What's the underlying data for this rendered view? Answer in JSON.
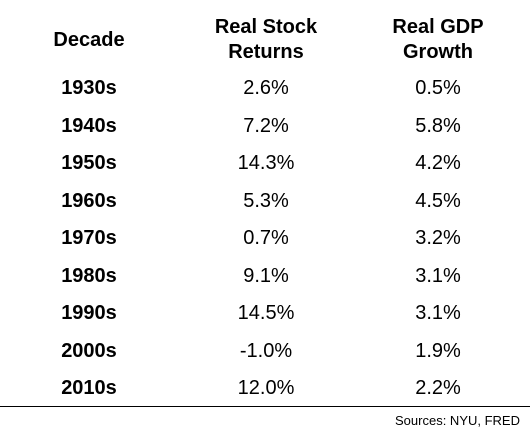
{
  "chart_data": {
    "type": "table",
    "columns": [
      "Decade",
      "Real Stock Returns",
      "Real GDP Growth"
    ],
    "header_lines": [
      [
        "Decade"
      ],
      [
        "Real Stock",
        "Returns"
      ],
      [
        "Real GDP",
        "Growth"
      ]
    ],
    "rows": [
      {
        "decade": "1930s",
        "stock": "2.6%",
        "gdp": "0.5%"
      },
      {
        "decade": "1940s",
        "stock": "7.2%",
        "gdp": "5.8%"
      },
      {
        "decade": "1950s",
        "stock": "14.3%",
        "gdp": "4.2%"
      },
      {
        "decade": "1960s",
        "stock": "5.3%",
        "gdp": "4.5%"
      },
      {
        "decade": "1970s",
        "stock": "0.7%",
        "gdp": "3.2%"
      },
      {
        "decade": "1980s",
        "stock": "9.1%",
        "gdp": "3.1%"
      },
      {
        "decade": "1990s",
        "stock": "14.5%",
        "gdp": "3.1%"
      },
      {
        "decade": "2000s",
        "stock": "-1.0%",
        "gdp": "1.9%"
      },
      {
        "decade": "2010s",
        "stock": "12.0%",
        "gdp": "2.2%"
      }
    ],
    "source": "Sources: NYU, FRED"
  }
}
